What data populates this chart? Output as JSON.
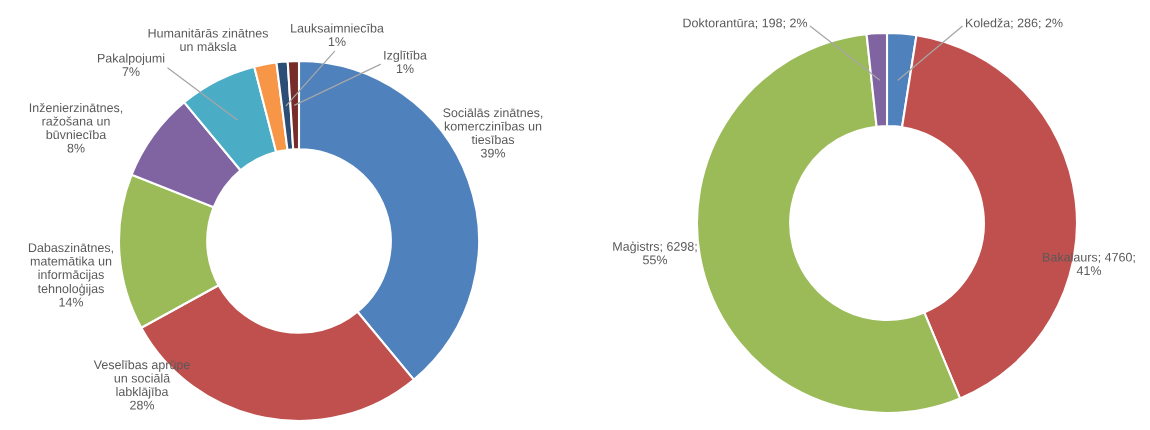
{
  "chart_data": [
    {
      "type": "donut",
      "categories": [
        "Sociālās zinātnes,\nkomerczinības un\ntiesības",
        "Veselības aprūpe\nun sociālā\nlabklājība",
        "Dabaszinātnes,\nmatemātika un\ninformācijas\ntehnoloģijas",
        "Inženierzinātnes,\nražošana un\nbūvniecība",
        "Pakalpojumi",
        "Humanitārās zinātnes\nun māksla",
        "Lauksaimniecība",
        "Izglītība"
      ],
      "values": [
        39,
        28,
        14,
        8,
        7,
        2,
        1,
        1
      ],
      "colors": [
        "#4f81bd",
        "#c0504d",
        "#9bbb59",
        "#8064a2",
        "#4bacc6",
        "#f79646",
        "#2c4d75",
        "#772c2a"
      ],
      "value_labels": [
        "39%",
        "28%",
        "14%",
        "8%",
        "7%",
        null,
        "1%",
        "1%"
      ]
    },
    {
      "type": "donut",
      "categories": [
        "Koledža",
        "Bakalaurs",
        "Maģistrs",
        "Doktorantūra"
      ],
      "values": [
        286,
        4760,
        6298,
        198
      ],
      "colors": [
        "#4f81bd",
        "#c0504d",
        "#9bbb59",
        "#8064a2"
      ],
      "value_labels": [
        "286; 2%",
        "4760;\n41%",
        "6298;\n55%",
        "198; 2%"
      ]
    }
  ]
}
